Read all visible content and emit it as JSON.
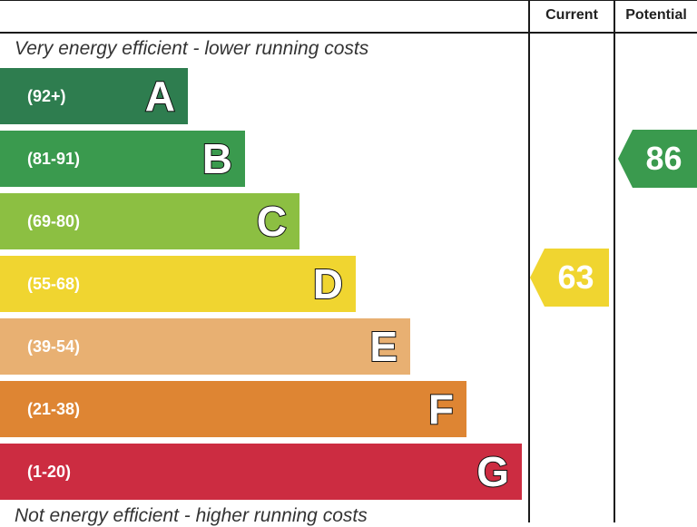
{
  "header": {
    "current_label": "Current",
    "potential_label": "Potential"
  },
  "captions": {
    "top": "Very energy efficient - lower running costs",
    "bottom": "Not energy efficient - higher running costs"
  },
  "bands": [
    {
      "letter": "A",
      "range": "(92+)",
      "color": "#2e7d4f"
    },
    {
      "letter": "B",
      "range": "(81-91)",
      "color": "#3a9a4e"
    },
    {
      "letter": "C",
      "range": "(69-80)",
      "color": "#8cbf42"
    },
    {
      "letter": "D",
      "range": "(55-68)",
      "color": "#f0d530"
    },
    {
      "letter": "E",
      "range": "(39-54)",
      "color": "#e8b072"
    },
    {
      "letter": "F",
      "range": "(21-38)",
      "color": "#de8533"
    },
    {
      "letter": "G",
      "range": "(1-20)",
      "color": "#cc2c41"
    }
  ],
  "current": {
    "value": "63",
    "band": "D",
    "color": "#f0d530"
  },
  "potential": {
    "value": "86",
    "band": "B",
    "color": "#3a9a4e"
  }
}
